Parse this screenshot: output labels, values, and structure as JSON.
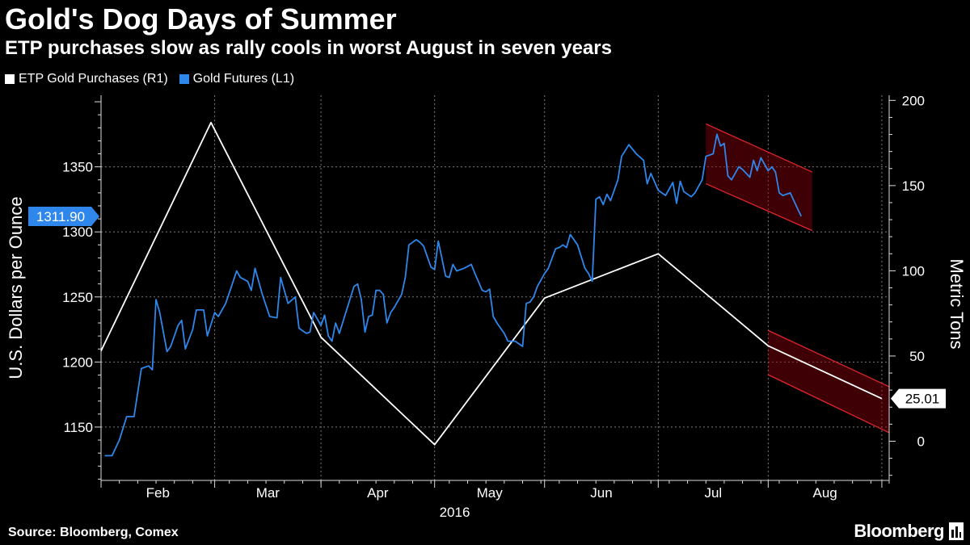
{
  "title": "Gold's Dog Days of Summer",
  "subtitle": "ETP purchases slow as rally cools in worst August in seven years",
  "legend": [
    {
      "label": "ETP Gold Purchases (R1)",
      "color": "#ffffff"
    },
    {
      "label": "Gold Futures (L1)",
      "color": "#2f86eb"
    }
  ],
  "source": "Source: Bloomberg, Comex",
  "brand": "Bloomberg",
  "chart_data": {
    "type": "line",
    "x_ticks": [
      "Feb",
      "Mar",
      "Apr",
      "May",
      "Jun",
      "Jul",
      "Aug"
    ],
    "year_label": "2016",
    "y_left": {
      "label": "U.S. Dollars per Ounce",
      "ticks": [
        1150,
        1200,
        1250,
        1300,
        1350
      ],
      "range": [
        1109,
        1405
      ]
    },
    "y_right": {
      "label": "Metric Tons",
      "ticks": [
        0,
        50,
        100,
        150,
        200
      ],
      "range": [
        -23,
        203
      ]
    },
    "grid": true,
    "last_value_left": "1311.90",
    "last_value_right": "25.01",
    "series": [
      {
        "name": "ETP Gold Purchases (R1)",
        "axis": "right",
        "color": "#ffffff",
        "points": [
          [
            "2016-01-01",
            53
          ],
          [
            "2016-01-31",
            187
          ],
          [
            "2016-03-01",
            61
          ],
          [
            "2016-04-01",
            -2
          ],
          [
            "2016-05-01",
            84
          ],
          [
            "2016-06-01",
            110
          ],
          [
            "2016-07-01",
            56
          ],
          [
            "2016-08-01",
            25.01
          ]
        ]
      },
      {
        "name": "Gold Futures (L1)",
        "axis": "left",
        "color": "#2f86eb",
        "points": [
          [
            "2016-01-02",
            1128
          ],
          [
            "2016-01-04",
            1128
          ],
          [
            "2016-01-06",
            1140
          ],
          [
            "2016-01-08",
            1158
          ],
          [
            "2016-01-09",
            1158
          ],
          [
            "2016-01-10",
            1158
          ],
          [
            "2016-01-12",
            1195
          ],
          [
            "2016-01-14",
            1197
          ],
          [
            "2016-01-15",
            1194
          ],
          [
            "2016-01-16",
            1248
          ],
          [
            "2016-01-17",
            1238
          ],
          [
            "2016-01-19",
            1208
          ],
          [
            "2016-01-20",
            1212
          ],
          [
            "2016-01-22",
            1228
          ],
          [
            "2016-01-23",
            1232
          ],
          [
            "2016-01-24",
            1210
          ],
          [
            "2016-01-26",
            1225
          ],
          [
            "2016-01-27",
            1240
          ],
          [
            "2016-01-29",
            1240
          ],
          [
            "2016-01-30",
            1220
          ],
          [
            "2016-02-01",
            1238
          ],
          [
            "2016-02-02",
            1235
          ],
          [
            "2016-02-04",
            1245
          ],
          [
            "2016-02-07",
            1270
          ],
          [
            "2016-02-08",
            1265
          ],
          [
            "2016-02-10",
            1262
          ],
          [
            "2016-02-11",
            1255
          ],
          [
            "2016-02-12",
            1272
          ],
          [
            "2016-02-14",
            1252
          ],
          [
            "2016-02-16",
            1235
          ],
          [
            "2016-02-18",
            1234
          ],
          [
            "2016-02-19",
            1265
          ],
          [
            "2016-02-21",
            1245
          ],
          [
            "2016-02-23",
            1250
          ],
          [
            "2016-02-24",
            1226
          ],
          [
            "2016-02-26",
            1222
          ],
          [
            "2016-02-27",
            1223
          ],
          [
            "2016-02-28",
            1238
          ],
          [
            "2016-03-01",
            1228
          ],
          [
            "2016-03-02",
            1236
          ],
          [
            "2016-03-03",
            1220
          ],
          [
            "2016-03-04",
            1216
          ],
          [
            "2016-03-05",
            1230
          ],
          [
            "2016-03-06",
            1222
          ],
          [
            "2016-03-08",
            1240
          ],
          [
            "2016-03-10",
            1258
          ],
          [
            "2016-03-11",
            1260
          ],
          [
            "2016-03-12",
            1248
          ],
          [
            "2016-03-13",
            1223
          ],
          [
            "2016-03-14",
            1235
          ],
          [
            "2016-03-15",
            1236
          ],
          [
            "2016-03-16",
            1255
          ],
          [
            "2016-03-17",
            1255
          ],
          [
            "2016-03-18",
            1252
          ],
          [
            "2016-03-19",
            1230
          ],
          [
            "2016-03-20",
            1238
          ],
          [
            "2016-03-21",
            1242
          ],
          [
            "2016-03-23",
            1252
          ],
          [
            "2016-03-24",
            1265
          ],
          [
            "2016-03-25",
            1290
          ],
          [
            "2016-03-27",
            1294
          ],
          [
            "2016-03-28",
            1292
          ],
          [
            "2016-03-29",
            1289
          ],
          [
            "2016-03-31",
            1273
          ],
          [
            "2016-04-01",
            1271
          ],
          [
            "2016-04-02",
            1293
          ],
          [
            "2016-04-04",
            1266
          ],
          [
            "2016-04-05",
            1265
          ],
          [
            "2016-04-06",
            1275
          ],
          [
            "2016-04-07",
            1270
          ],
          [
            "2016-04-09",
            1272
          ],
          [
            "2016-04-11",
            1275
          ],
          [
            "2016-04-12",
            1268
          ],
          [
            "2016-04-14",
            1255
          ],
          [
            "2016-04-15",
            1254
          ],
          [
            "2016-04-16",
            1256
          ],
          [
            "2016-04-17",
            1235
          ],
          [
            "2016-04-18",
            1230
          ],
          [
            "2016-04-19",
            1226
          ],
          [
            "2016-04-20",
            1222
          ],
          [
            "2016-04-21",
            1216
          ],
          [
            "2016-04-23",
            1216
          ],
          [
            "2016-04-25",
            1212
          ],
          [
            "2016-04-26",
            1245
          ],
          [
            "2016-04-27",
            1246
          ],
          [
            "2016-04-28",
            1250
          ],
          [
            "2016-04-29",
            1258
          ],
          [
            "2016-05-01",
            1268
          ],
          [
            "2016-05-02",
            1272
          ],
          [
            "2016-05-04",
            1287
          ],
          [
            "2016-05-05",
            1288
          ],
          [
            "2016-05-06",
            1290
          ],
          [
            "2016-05-07",
            1288
          ],
          [
            "2016-05-08",
            1298
          ],
          [
            "2016-05-10",
            1290
          ],
          [
            "2016-05-12",
            1272
          ],
          [
            "2016-05-13",
            1268
          ],
          [
            "2016-05-14",
            1262
          ],
          [
            "2016-05-15",
            1325
          ],
          [
            "2016-05-16",
            1327
          ],
          [
            "2016-05-17",
            1321
          ],
          [
            "2016-05-18",
            1329
          ],
          [
            "2016-05-19",
            1324
          ],
          [
            "2016-05-21",
            1340
          ],
          [
            "2016-05-22",
            1358
          ],
          [
            "2016-05-24",
            1367
          ],
          [
            "2016-05-26",
            1360
          ],
          [
            "2016-05-28",
            1355
          ],
          [
            "2016-05-29",
            1337
          ],
          [
            "2016-05-30",
            1345
          ],
          [
            "2016-06-01",
            1332
          ],
          [
            "2016-06-03",
            1328
          ],
          [
            "2016-06-05",
            1338
          ],
          [
            "2016-06-06",
            1322
          ],
          [
            "2016-06-07",
            1339
          ],
          [
            "2016-06-08",
            1331
          ],
          [
            "2016-06-10",
            1327
          ],
          [
            "2016-06-11",
            1330
          ],
          [
            "2016-06-13",
            1340
          ],
          [
            "2016-06-14",
            1358
          ],
          [
            "2016-06-16",
            1360
          ],
          [
            "2016-06-17",
            1375
          ],
          [
            "2016-06-18",
            1366
          ],
          [
            "2016-06-19",
            1368
          ],
          [
            "2016-06-20",
            1343
          ],
          [
            "2016-06-21",
            1340
          ],
          [
            "2016-06-23",
            1350
          ],
          [
            "2016-06-24",
            1348
          ],
          [
            "2016-06-26",
            1342
          ],
          [
            "2016-06-27",
            1355
          ],
          [
            "2016-06-28",
            1347
          ],
          [
            "2016-06-29",
            1357
          ],
          [
            "2016-07-01",
            1347
          ],
          [
            "2016-07-02",
            1350
          ],
          [
            "2016-07-03",
            1346
          ],
          [
            "2016-07-04",
            1330
          ],
          [
            "2016-07-05",
            1328
          ],
          [
            "2016-07-07",
            1330
          ],
          [
            "2016-07-09",
            1318
          ],
          [
            "2016-07-10",
            1312
          ]
        ]
      }
    ],
    "annotations": [
      {
        "type": "downtrend-channel",
        "axis": "left",
        "from": "2016-06-14",
        "to": "2016-07-13",
        "upper": [
          1383,
          1346
        ],
        "lower": [
          1337,
          1301
        ],
        "color": "#e0262a"
      },
      {
        "type": "downtrend-channel",
        "axis": "right",
        "from": "2016-07-01",
        "to": "2016-08-03",
        "upper": [
          65,
          32
        ],
        "lower": [
          39,
          5
        ],
        "color": "#e0262a"
      }
    ]
  }
}
